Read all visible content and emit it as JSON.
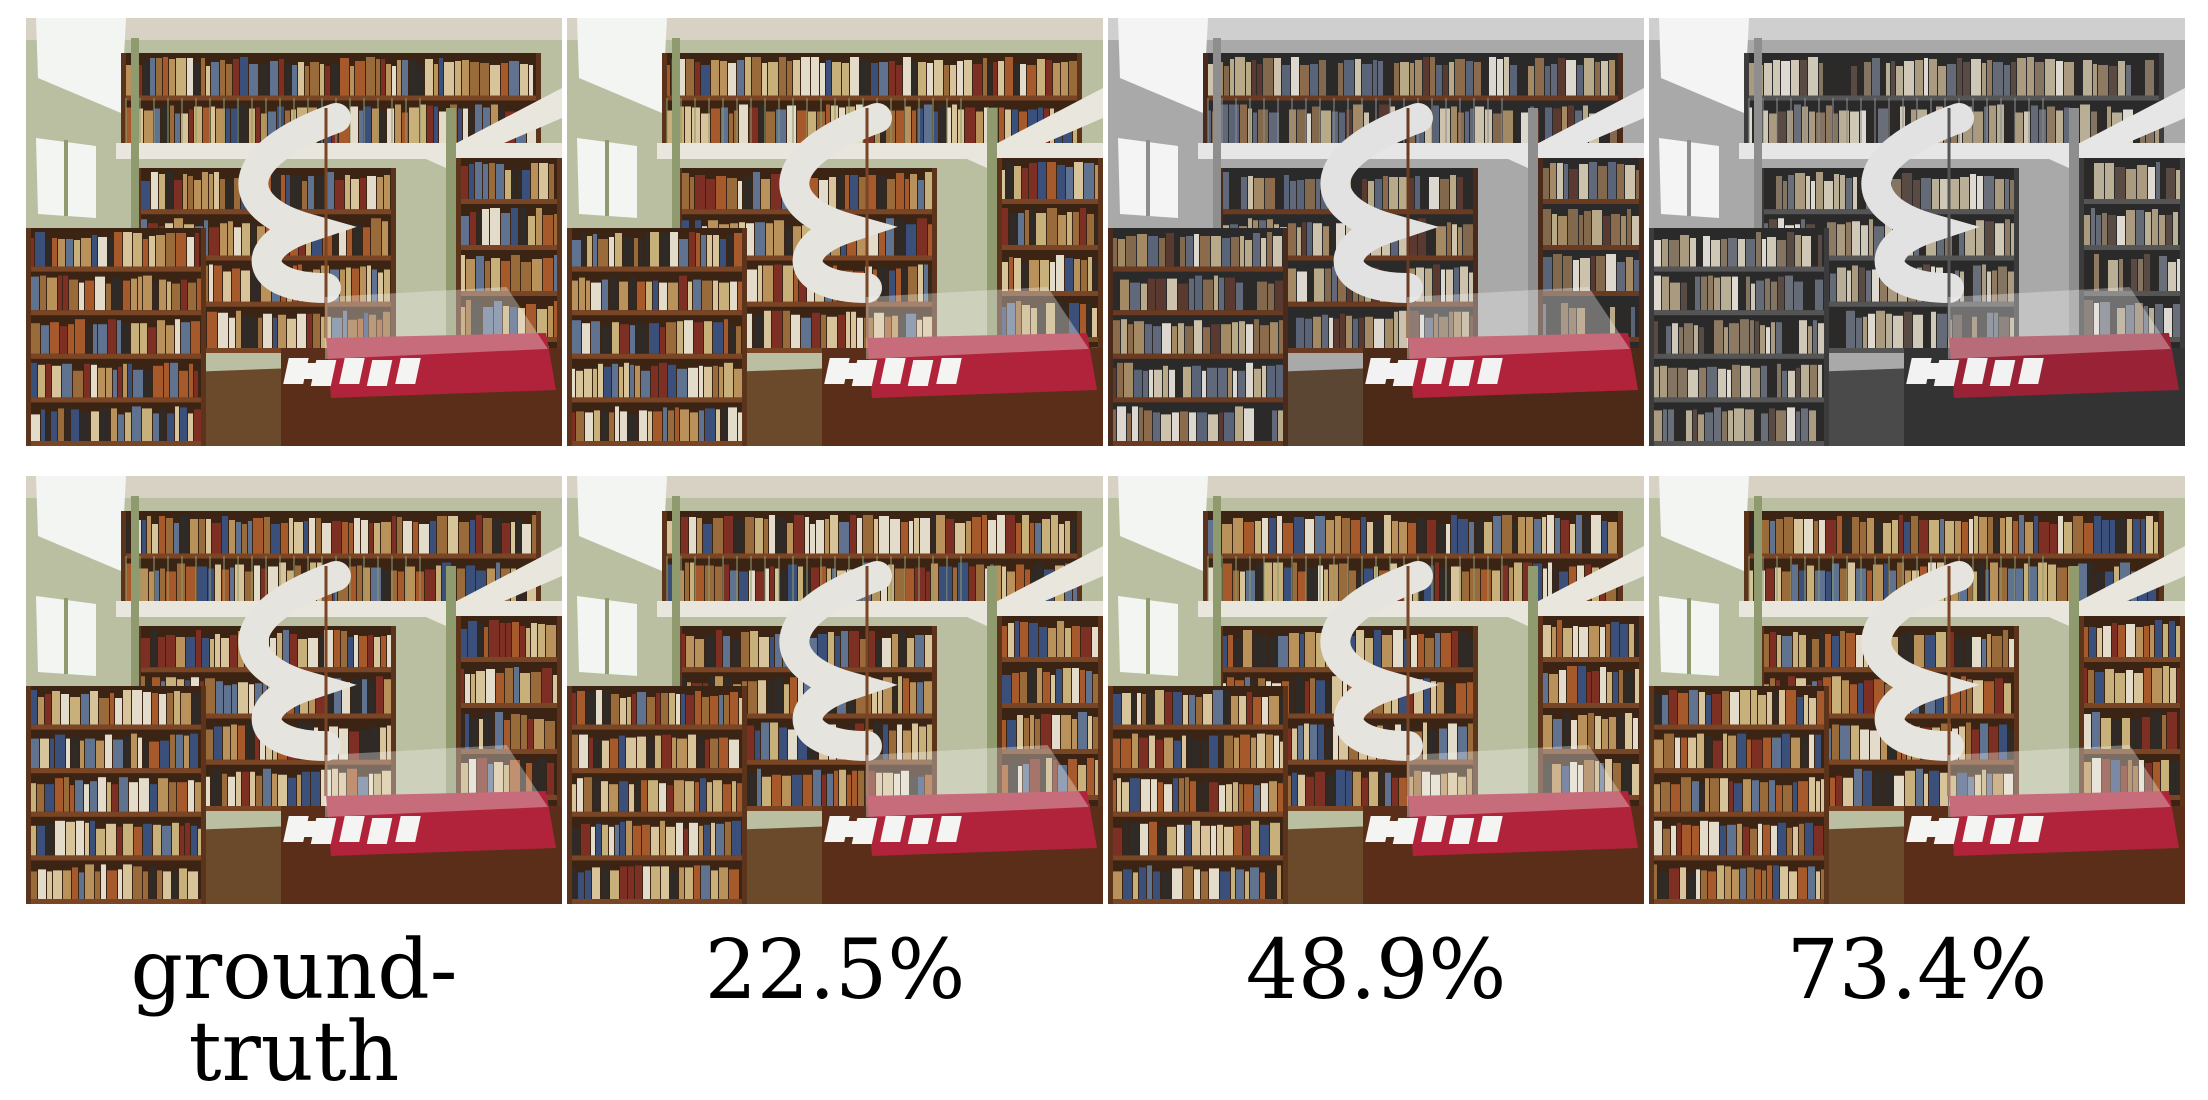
{
  "figure": {
    "rows": [
      {
        "row": "top",
        "tiles": [
          {
            "column": "ground-truth",
            "tone": "grayscale"
          },
          {
            "column": "22.5%",
            "tone": "color"
          },
          {
            "column": "48.9%",
            "tone": "partial"
          },
          {
            "column": "73.4%",
            "tone": "mostly-gray"
          }
        ]
      },
      {
        "row": "bottom",
        "tiles": [
          {
            "column": "ground-truth",
            "tone": "color"
          },
          {
            "column": "22.5%",
            "tone": "color"
          },
          {
            "column": "48.9%",
            "tone": "color"
          },
          {
            "column": "73.4%",
            "tone": "color"
          }
        ]
      }
    ],
    "captions": [
      "ground-truth",
      "22.5%",
      "48.9%",
      "73.4%"
    ],
    "scene": "library interior with spiral staircase, balcony bookshelves, wooden shelves and a glass display case on a red cloth table"
  }
}
